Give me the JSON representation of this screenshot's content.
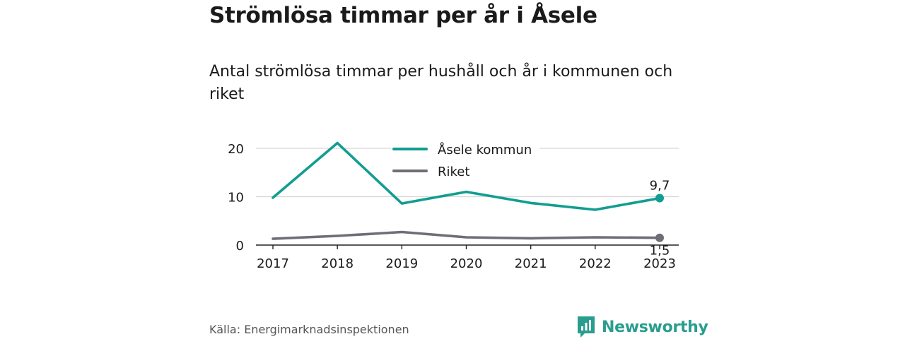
{
  "title": "Strömlösa timmar per år i Åsele",
  "subtitle": "Antal strömlösa timmar per hushåll och år i kommunen och riket",
  "source": "Källa: Energimarknadsinspektionen",
  "brand": "Newsworthy",
  "colors": {
    "asele": "#129d91",
    "riket": "#6f6e78",
    "grid": "#d6d6d6",
    "baseline": "#222222",
    "brand": "#2a9d8f"
  },
  "chart_data": {
    "type": "line",
    "x": [
      "2017",
      "2018",
      "2019",
      "2020",
      "2021",
      "2022",
      "2023"
    ],
    "ylim": [
      0,
      22
    ],
    "yticks": [
      0,
      10,
      20
    ],
    "ytick_labels": [
      "0",
      "10",
      "20"
    ],
    "grid": true,
    "legend_placement": "top-center",
    "series": [
      {
        "name": "Åsele kommun",
        "color": "#129d91",
        "values": [
          9.8,
          21.1,
          8.6,
          11.0,
          8.7,
          7.3,
          9.7
        ],
        "end_label": "9,7"
      },
      {
        "name": "Riket",
        "color": "#6f6e78",
        "values": [
          1.3,
          1.9,
          2.7,
          1.6,
          1.4,
          1.6,
          1.5
        ],
        "end_label": "1,5"
      }
    ]
  }
}
